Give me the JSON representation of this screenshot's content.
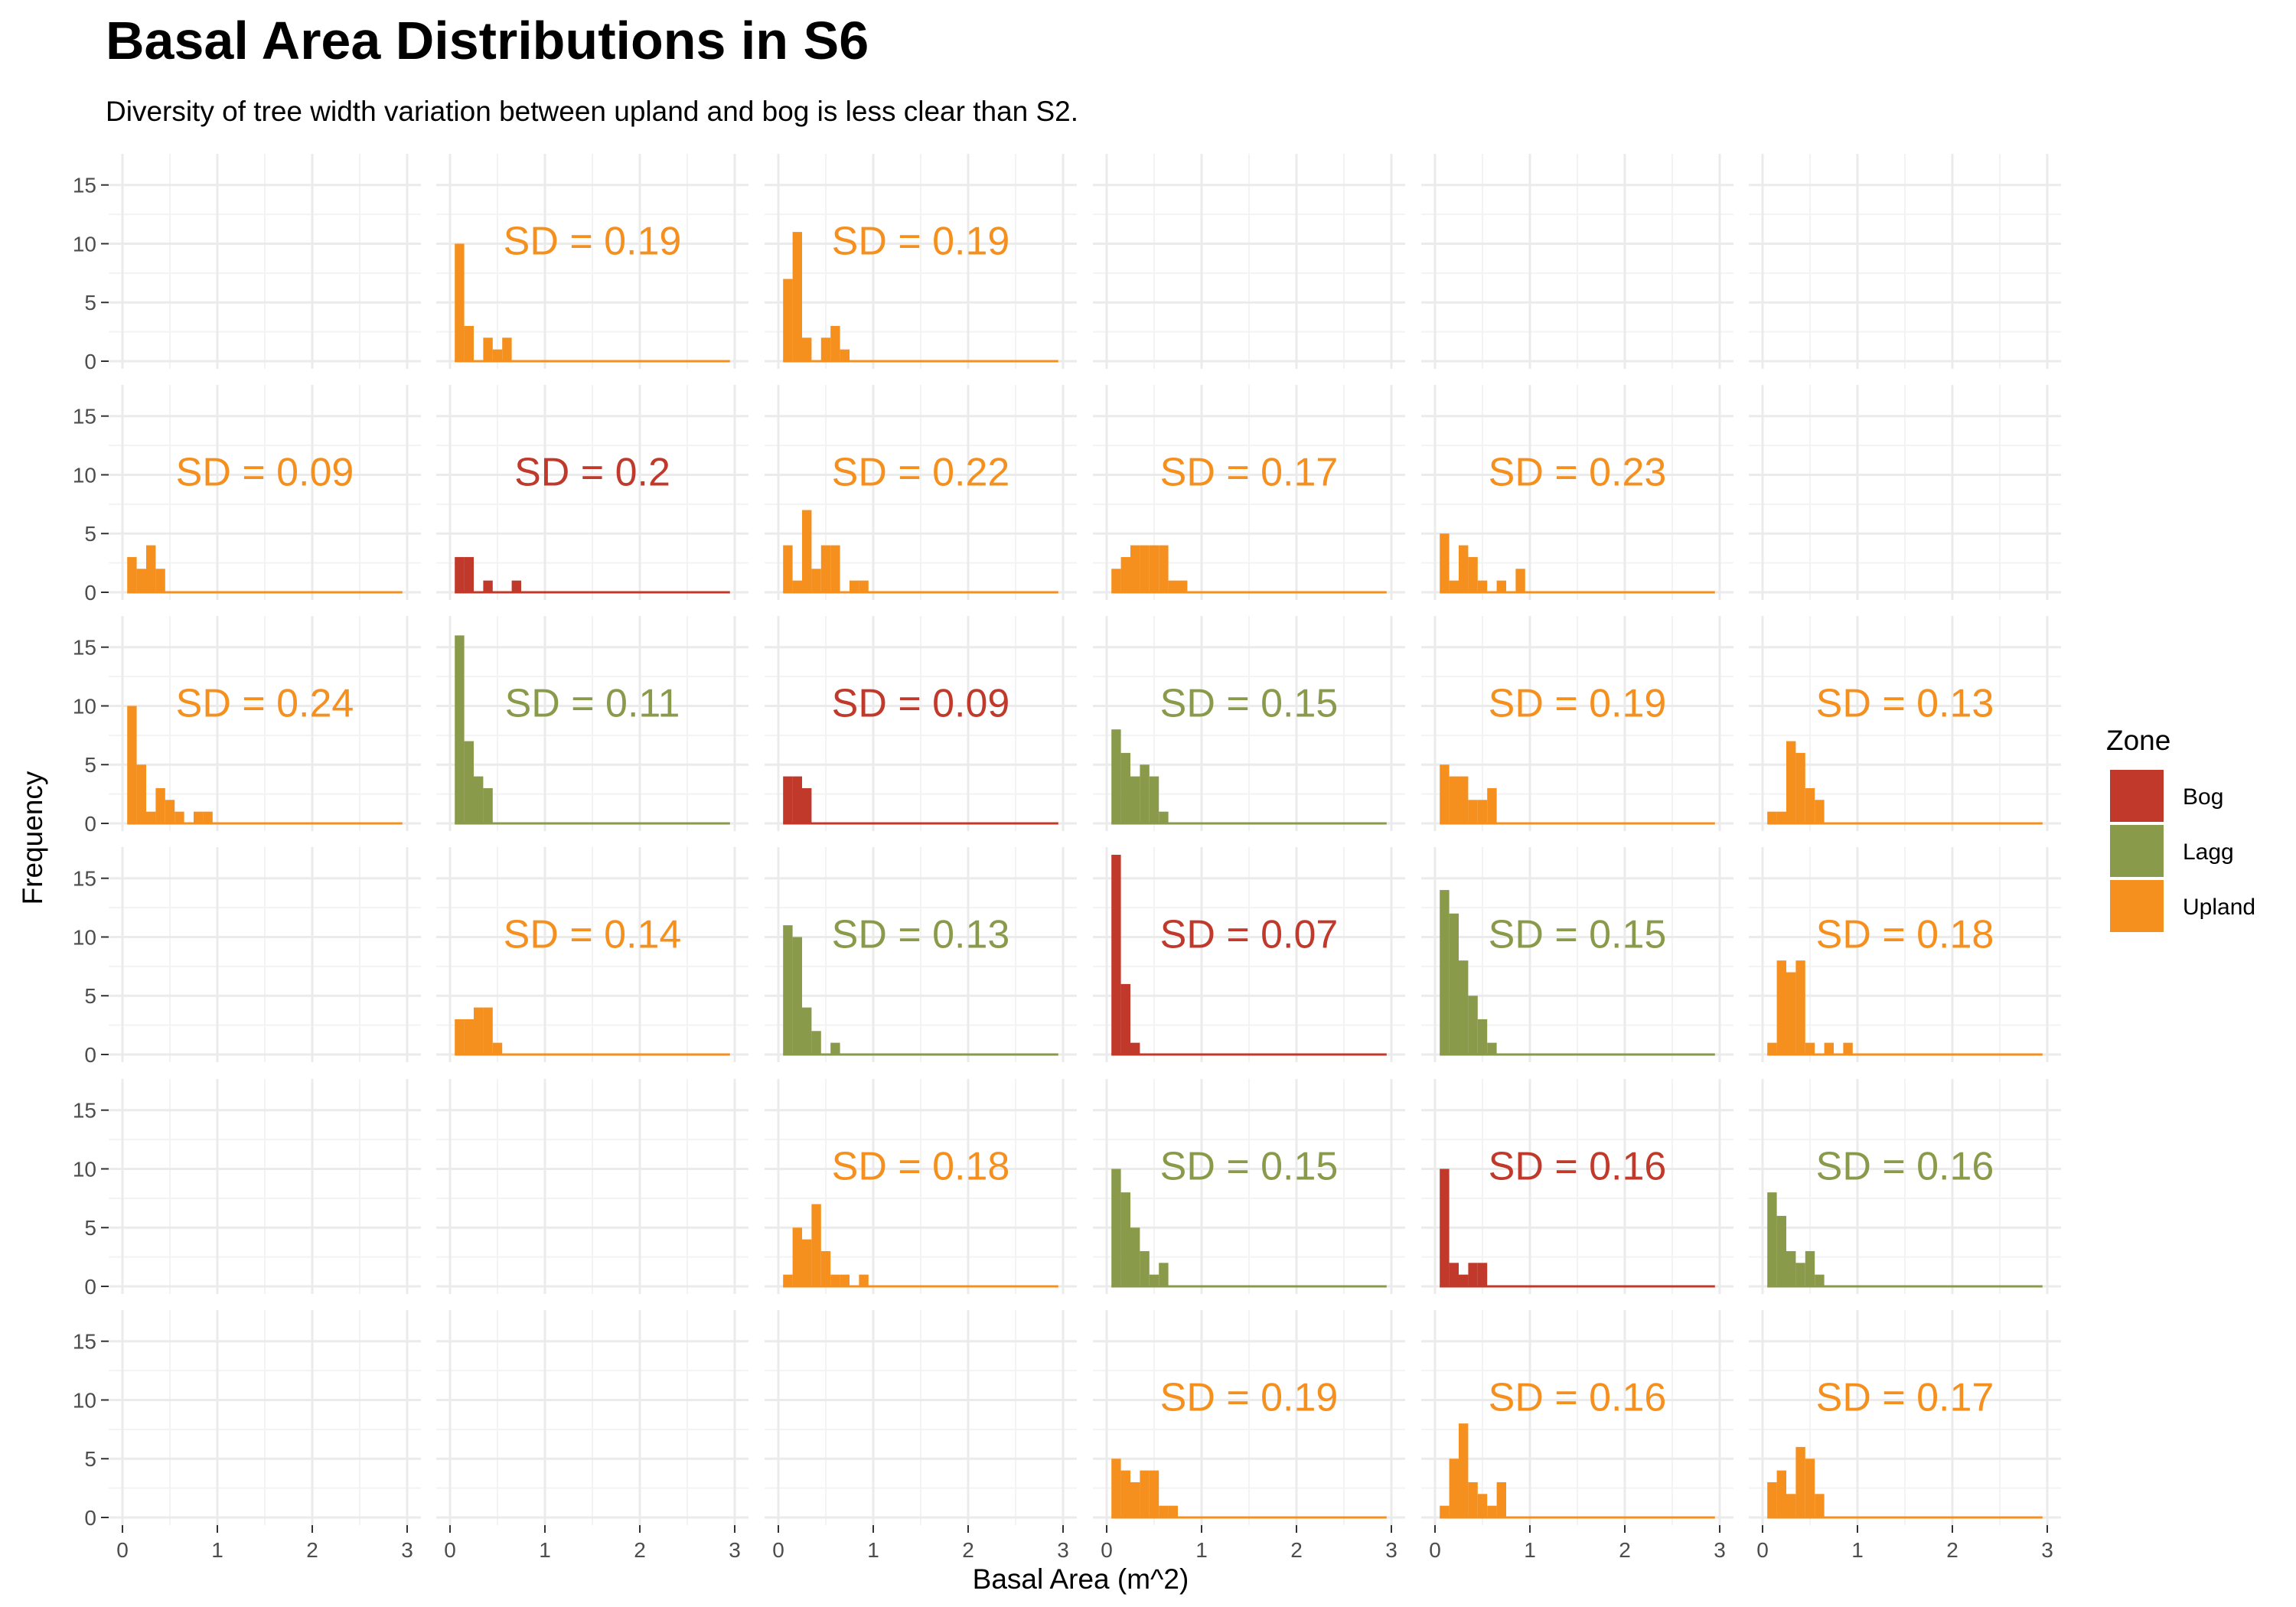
{
  "chart_data": {
    "type": "histogram-facets",
    "title": "Basal Area Distributions in S6",
    "subtitle": "Diversity of tree width variation between upland and bog is less clear than S2.",
    "xlabel": "Basal Area (m^2)",
    "ylabel": "Frequency",
    "xlim": [
      0,
      3
    ],
    "ylim": [
      0,
      17
    ],
    "xticks": [
      "0",
      "1",
      "2",
      "3"
    ],
    "yticks": [
      "0",
      "5",
      "10",
      "15"
    ],
    "x_values": [
      0,
      1,
      2,
      3
    ],
    "y_values": [
      0,
      5,
      10,
      15
    ],
    "bin_width": 0.1,
    "bin_start": 0.05,
    "grid": true,
    "legend": {
      "title": "Zone",
      "position": "right",
      "entries": [
        {
          "name": "Bog",
          "color": "#C0392B"
        },
        {
          "name": "Lagg",
          "color": "#8A9A4B"
        },
        {
          "name": "Upland",
          "color": "#F5901E"
        }
      ]
    },
    "colors": {
      "Bog": "#C0392B",
      "Lagg": "#8A9A4B",
      "Upland": "#F5901E"
    },
    "facets": [
      {
        "row": 0,
        "col": 0,
        "zone": null,
        "sd": "",
        "counts": []
      },
      {
        "row": 0,
        "col": 1,
        "zone": "Upland",
        "sd": "SD = 0.19",
        "counts": [
          10,
          3,
          0,
          2,
          1,
          2
        ]
      },
      {
        "row": 0,
        "col": 2,
        "zone": "Upland",
        "sd": "SD = 0.19",
        "counts": [
          7,
          11,
          2,
          0,
          2,
          3,
          1
        ]
      },
      {
        "row": 0,
        "col": 3,
        "zone": null,
        "sd": "",
        "counts": []
      },
      {
        "row": 0,
        "col": 4,
        "zone": null,
        "sd": "",
        "counts": []
      },
      {
        "row": 0,
        "col": 5,
        "zone": null,
        "sd": "",
        "counts": []
      },
      {
        "row": 1,
        "col": 0,
        "zone": "Upland",
        "sd": "SD = 0.09",
        "counts": [
          3,
          2,
          4,
          2
        ]
      },
      {
        "row": 1,
        "col": 1,
        "zone": "Bog",
        "sd": "SD = 0.2",
        "counts": [
          3,
          3,
          0,
          1,
          0,
          0,
          1
        ]
      },
      {
        "row": 1,
        "col": 2,
        "zone": "Upland",
        "sd": "SD = 0.22",
        "counts": [
          4,
          1,
          7,
          2,
          4,
          4,
          0,
          1,
          1
        ]
      },
      {
        "row": 1,
        "col": 3,
        "zone": "Upland",
        "sd": "SD = 0.17",
        "counts": [
          2,
          3,
          4,
          4,
          4,
          4,
          1,
          1
        ]
      },
      {
        "row": 1,
        "col": 4,
        "zone": "Upland",
        "sd": "SD = 0.23",
        "counts": [
          5,
          1,
          4,
          3,
          1,
          0,
          1,
          0,
          2
        ]
      },
      {
        "row": 1,
        "col": 5,
        "zone": null,
        "sd": "",
        "counts": []
      },
      {
        "row": 2,
        "col": 0,
        "zone": "Upland",
        "sd": "SD = 0.24",
        "counts": [
          10,
          5,
          1,
          3,
          2,
          1,
          0,
          1,
          1
        ]
      },
      {
        "row": 2,
        "col": 1,
        "zone": "Lagg",
        "sd": "SD = 0.11",
        "counts": [
          16,
          7,
          4,
          3
        ]
      },
      {
        "row": 2,
        "col": 2,
        "zone": "Bog",
        "sd": "SD = 0.09",
        "counts": [
          4,
          4,
          3
        ]
      },
      {
        "row": 2,
        "col": 3,
        "zone": "Lagg",
        "sd": "SD = 0.15",
        "counts": [
          8,
          6,
          4,
          5,
          4,
          1
        ]
      },
      {
        "row": 2,
        "col": 4,
        "zone": "Upland",
        "sd": "SD = 0.19",
        "counts": [
          5,
          4,
          4,
          2,
          2,
          3
        ]
      },
      {
        "row": 2,
        "col": 5,
        "zone": "Upland",
        "sd": "SD = 0.13",
        "counts": [
          1,
          1,
          7,
          6,
          3,
          2
        ]
      },
      {
        "row": 3,
        "col": 0,
        "zone": null,
        "sd": "",
        "counts": []
      },
      {
        "row": 3,
        "col": 1,
        "zone": "Upland",
        "sd": "SD = 0.14",
        "counts": [
          3,
          3,
          4,
          4,
          1
        ]
      },
      {
        "row": 3,
        "col": 2,
        "zone": "Lagg",
        "sd": "SD = 0.13",
        "counts": [
          11,
          10,
          4,
          2,
          0,
          1
        ]
      },
      {
        "row": 3,
        "col": 3,
        "zone": "Bog",
        "sd": "SD = 0.07",
        "counts": [
          17,
          6,
          1
        ]
      },
      {
        "row": 3,
        "col": 4,
        "zone": "Lagg",
        "sd": "SD = 0.15",
        "counts": [
          14,
          12,
          8,
          5,
          3,
          1
        ]
      },
      {
        "row": 3,
        "col": 5,
        "zone": "Upland",
        "sd": "SD = 0.18",
        "counts": [
          1,
          8,
          7,
          8,
          1,
          0,
          1,
          0,
          1
        ]
      },
      {
        "row": 4,
        "col": 0,
        "zone": null,
        "sd": "",
        "counts": []
      },
      {
        "row": 4,
        "col": 1,
        "zone": null,
        "sd": "",
        "counts": []
      },
      {
        "row": 4,
        "col": 2,
        "zone": "Upland",
        "sd": "SD = 0.18",
        "counts": [
          1,
          5,
          4,
          7,
          3,
          1,
          1,
          0,
          1
        ]
      },
      {
        "row": 4,
        "col": 3,
        "zone": "Lagg",
        "sd": "SD = 0.15",
        "counts": [
          10,
          8,
          5,
          3,
          1,
          2
        ]
      },
      {
        "row": 4,
        "col": 4,
        "zone": "Bog",
        "sd": "SD = 0.16",
        "counts": [
          10,
          2,
          1,
          2,
          2
        ]
      },
      {
        "row": 4,
        "col": 5,
        "zone": "Lagg",
        "sd": "SD = 0.16",
        "counts": [
          8,
          6,
          3,
          2,
          3,
          1
        ]
      },
      {
        "row": 5,
        "col": 0,
        "zone": null,
        "sd": "",
        "counts": []
      },
      {
        "row": 5,
        "col": 1,
        "zone": null,
        "sd": "",
        "counts": []
      },
      {
        "row": 5,
        "col": 2,
        "zone": null,
        "sd": "",
        "counts": []
      },
      {
        "row": 5,
        "col": 3,
        "zone": "Upland",
        "sd": "SD = 0.19",
        "counts": [
          5,
          4,
          3,
          4,
          4,
          1,
          1
        ]
      },
      {
        "row": 5,
        "col": 4,
        "zone": "Upland",
        "sd": "SD = 0.16",
        "counts": [
          1,
          5,
          8,
          3,
          2,
          1,
          3
        ]
      },
      {
        "row": 5,
        "col": 5,
        "zone": "Upland",
        "sd": "SD = 0.17",
        "counts": [
          3,
          4,
          2,
          6,
          5,
          2
        ]
      }
    ]
  }
}
